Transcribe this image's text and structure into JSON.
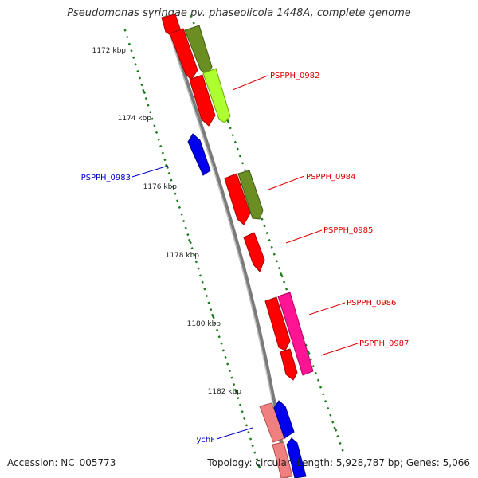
{
  "title": "Pseudomonas syringae pv. phaseolicola 1448A, complete genome",
  "footer": {
    "accession": "Accession: NC_005773",
    "summary": "Topology: circular; Length: 5,928,787 bp; Genes: 5,066"
  },
  "colors": {
    "backbone": "#888888",
    "tick": "#1a7a1a",
    "forward_cds": "#ff0000",
    "olive": "#6b8e23",
    "lime": "#adff2f",
    "reverse_cds": "#0000ee",
    "pink": "#ff1493",
    "salmon": "#f08080",
    "label_red": "#dd0000",
    "label_blue": "#0000cc"
  },
  "scale_labels": [
    "1172 kbp",
    "1174 kbp",
    "1176 kbp",
    "1178 kbp",
    "1180 kbp",
    "1182 kbp"
  ],
  "gene_labels": [
    {
      "name": "PSPPH_0982",
      "color": "label_red",
      "side": "right"
    },
    {
      "name": "PSPPH_0983",
      "color": "label_blue",
      "side": "left"
    },
    {
      "name": "PSPPH_0984",
      "color": "label_red",
      "side": "right"
    },
    {
      "name": "PSPPH_0985",
      "color": "label_red",
      "side": "right"
    },
    {
      "name": "PSPPH_0986",
      "color": "label_red",
      "side": "right"
    },
    {
      "name": "PSPPH_0987",
      "color": "label_red",
      "side": "right"
    },
    {
      "name": "ychF",
      "color": "label_blue",
      "side": "left"
    }
  ]
}
